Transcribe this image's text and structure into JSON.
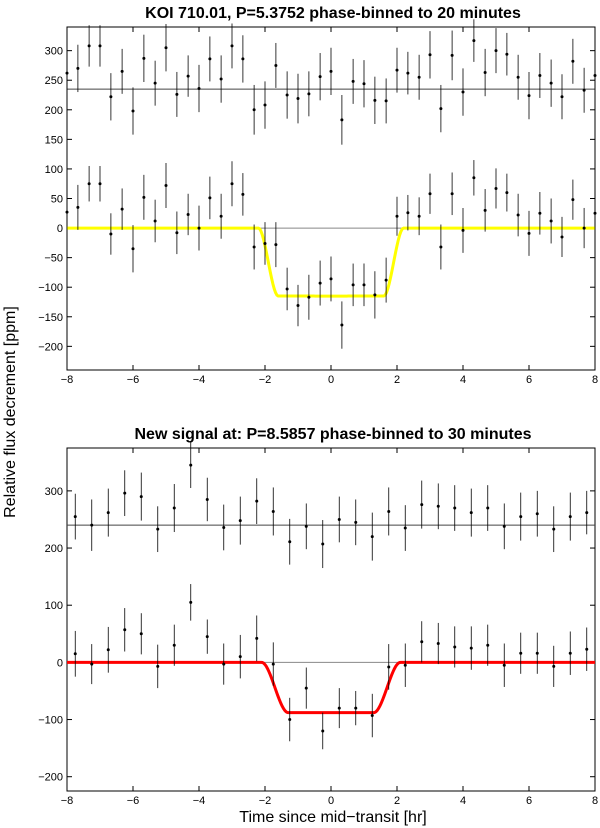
{
  "figure": {
    "ylabel": "Relative flux decrement [ppm]",
    "xlabel": "Time since mid−transit [hr]"
  },
  "chart_data": [
    {
      "type": "scatter",
      "title": "KOI 710.01, P=5.3752 phase-binned to 20 minutes",
      "xlim": [
        -8,
        8
      ],
      "ylim": [
        -240,
        340
      ],
      "xticks": [
        -8,
        -6,
        -4,
        -2,
        0,
        2,
        4,
        6,
        8
      ],
      "yticks": [
        -200,
        -150,
        -100,
        -50,
        0,
        50,
        100,
        150,
        200,
        250,
        300
      ],
      "reference_lines": [
        0,
        235
      ],
      "model_color": "#ffff00",
      "model": {
        "depth": 115,
        "t_ingress_start": 2.2,
        "ingress_duration": 0.6
      },
      "series": [
        {
          "label_role": "offset data",
          "x": [
            -8.0,
            -7.67,
            -7.33,
            -7.0,
            -6.67,
            -6.33,
            -6.0,
            -5.67,
            -5.33,
            -5.0,
            -4.67,
            -4.33,
            -4.0,
            -3.67,
            -3.33,
            -3.0,
            -2.67,
            -2.33,
            -2.0,
            -1.67,
            -1.33,
            -1.0,
            -0.67,
            -0.33,
            0.0,
            0.33,
            0.67,
            1.0,
            1.33,
            1.67,
            2.0,
            2.33,
            2.67,
            3.0,
            3.33,
            3.67,
            4.0,
            4.33,
            4.67,
            5.0,
            5.33,
            5.67,
            6.0,
            6.33,
            6.67,
            7.0,
            7.33,
            7.67,
            8.0
          ],
          "y": [
            262,
            270,
            308,
            308,
            222,
            265,
            198,
            287,
            245,
            305,
            226,
            257,
            236,
            286,
            252,
            308,
            286,
            200,
            208,
            275,
            225,
            219,
            227,
            256,
            265,
            183,
            248,
            244,
            216,
            215,
            267,
            262,
            255,
            293,
            202,
            292,
            230,
            317,
            263,
            300,
            294,
            255,
            224,
            258,
            245,
            222,
            282,
            233,
            258
          ],
          "err": [
            40,
            40,
            35,
            35,
            40,
            38,
            40,
            40,
            38,
            40,
            38,
            35,
            40,
            38,
            40,
            38,
            40,
            42,
            40,
            38,
            40,
            42,
            38,
            40,
            40,
            42,
            38,
            40,
            40,
            38,
            38,
            36,
            38,
            40,
            40,
            42,
            40,
            36,
            40,
            38,
            36,
            38,
            40,
            38,
            40,
            38,
            38,
            38,
            40
          ]
        },
        {
          "label_role": "data",
          "x": [
            -8.0,
            -7.67,
            -7.33,
            -7.0,
            -6.67,
            -6.33,
            -6.0,
            -5.67,
            -5.33,
            -5.0,
            -4.67,
            -4.33,
            -4.0,
            -3.67,
            -3.33,
            -3.0,
            -2.67,
            -2.33,
            -2.0,
            -1.67,
            -1.33,
            -1.0,
            -0.67,
            -0.33,
            0.0,
            0.33,
            0.67,
            1.0,
            1.33,
            1.67,
            2.0,
            2.33,
            2.67,
            3.0,
            3.33,
            3.67,
            4.0,
            4.33,
            4.67,
            5.0,
            5.33,
            5.67,
            6.0,
            6.33,
            6.67,
            7.0,
            7.33,
            7.67,
            8.0
          ],
          "y": [
            27,
            35,
            75,
            75,
            -10,
            32,
            -35,
            52,
            12,
            72,
            -8,
            23,
            0,
            51,
            20,
            75,
            57,
            -32,
            -26,
            -28,
            -103,
            -131,
            -117,
            -93,
            -86,
            -164,
            -96,
            -96,
            -113,
            -88,
            20,
            26,
            20,
            58,
            -32,
            58,
            -4,
            85,
            30,
            67,
            60,
            22,
            -9,
            25,
            12,
            -15,
            48,
            0,
            25
          ],
          "err": [
            35,
            38,
            30,
            30,
            35,
            35,
            40,
            38,
            36,
            38,
            36,
            35,
            38,
            36,
            38,
            38,
            36,
            38,
            36,
            38,
            36,
            35,
            38,
            38,
            38,
            40,
            36,
            36,
            40,
            38,
            33,
            30,
            32,
            34,
            38,
            36,
            38,
            30,
            36,
            34,
            32,
            36,
            38,
            36,
            38,
            34,
            34,
            34,
            38
          ]
        }
      ]
    },
    {
      "type": "scatter",
      "title": "New signal at: P=8.5857 phase-binned to 30 minutes",
      "xlim": [
        -8,
        8
      ],
      "ylim": [
        -225,
        375
      ],
      "xticks": [
        -8,
        -6,
        -4,
        -2,
        0,
        2,
        4,
        6,
        8
      ],
      "yticks": [
        -200,
        -100,
        0,
        100,
        200,
        300
      ],
      "reference_lines": [
        0,
        240
      ],
      "model_color": "#ff0000",
      "model": {
        "depth": 88,
        "t_ingress_start": 2.1,
        "ingress_duration": 0.8
      },
      "series": [
        {
          "label_role": "offset data",
          "x": [
            -7.75,
            -7.25,
            -6.75,
            -6.25,
            -5.75,
            -5.25,
            -4.75,
            -4.25,
            -3.75,
            -3.25,
            -2.75,
            -2.25,
            -1.75,
            -1.25,
            -0.75,
            -0.25,
            0.25,
            0.75,
            1.25,
            1.75,
            2.25,
            2.75,
            3.25,
            3.75,
            4.25,
            4.75,
            5.25,
            5.75,
            6.25,
            6.75,
            7.25,
            7.75
          ],
          "y": [
            255,
            240,
            262,
            296,
            290,
            233,
            270,
            345,
            285,
            236,
            248,
            282,
            264,
            211,
            238,
            207,
            250,
            245,
            220,
            264,
            235,
            276,
            273,
            270,
            262,
            270,
            238,
            255,
            260,
            233,
            255,
            262
          ],
          "err": [
            40,
            45,
            42,
            40,
            42,
            40,
            42,
            40,
            38,
            40,
            42,
            40,
            42,
            40,
            40,
            42,
            40,
            40,
            42,
            42,
            40,
            42,
            40,
            40,
            42,
            40,
            40,
            42,
            40,
            40,
            42,
            38
          ]
        },
        {
          "label_role": "data",
          "x": [
            -7.75,
            -7.25,
            -6.75,
            -6.25,
            -5.75,
            -5.25,
            -4.75,
            -4.25,
            -3.75,
            -3.25,
            -2.75,
            -2.25,
            -1.75,
            -1.25,
            -0.75,
            -0.25,
            0.25,
            0.75,
            1.25,
            1.75,
            2.25,
            2.75,
            3.25,
            3.75,
            4.25,
            4.75,
            5.25,
            5.75,
            6.25,
            6.75,
            7.25,
            7.75
          ],
          "y": [
            15,
            -3,
            22,
            57,
            50,
            -7,
            30,
            105,
            45,
            -3,
            10,
            42,
            -3,
            -100,
            -45,
            -120,
            -80,
            -80,
            -93,
            -8,
            -5,
            36,
            33,
            27,
            25,
            30,
            -5,
            16,
            16,
            -7,
            16,
            23
          ],
          "err": [
            40,
            35,
            40,
            38,
            36,
            38,
            36,
            32,
            30,
            36,
            38,
            40,
            38,
            38,
            36,
            32,
            35,
            30,
            38,
            40,
            38,
            36,
            36,
            36,
            38,
            36,
            38,
            36,
            36,
            36,
            38,
            38
          ]
        }
      ]
    }
  ]
}
